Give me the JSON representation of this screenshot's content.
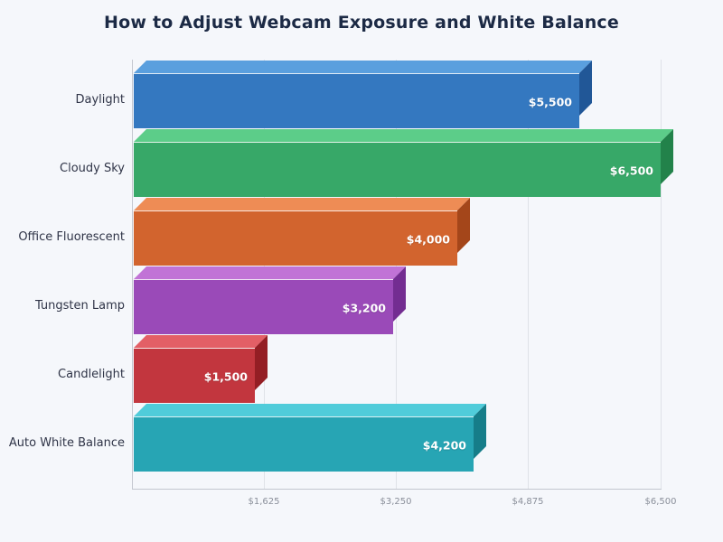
{
  "title": "How to Adjust Webcam Exposure and White Balance",
  "chart_data": {
    "type": "bar",
    "orientation": "horizontal",
    "style": "3d",
    "title": "How to Adjust Webcam Exposure and White Balance",
    "xlabel": "",
    "ylabel": "",
    "categories": [
      "Daylight",
      "Cloudy Sky",
      "Office Fluorescent",
      "Tungsten Lamp",
      "Candlelight",
      "Auto White Balance"
    ],
    "values": [
      5500,
      6500,
      4000,
      3200,
      1500,
      4200
    ],
    "value_labels": [
      "$5,500",
      "$6,500",
      "$4,000",
      "$3,200",
      "$1,500",
      "$4,200"
    ],
    "colors": [
      "#3478c0",
      "#37a868",
      "#d2642e",
      "#9a4ab8",
      "#c2363e",
      "#27a5b4"
    ],
    "xlim": [
      0,
      6500
    ],
    "x_ticks": [
      1625,
      3250,
      4875,
      6500
    ],
    "x_tick_labels": [
      "$1,625",
      "$3,250",
      "$4,875",
      "$6,500"
    ],
    "grid": true,
    "legend": false
  },
  "bars": [
    {
      "label": "Daylight",
      "value_label": "$5,500",
      "front": "#3478c0",
      "top": "#5a9fde",
      "side": "#215797"
    },
    {
      "label": "Cloudy Sky",
      "value_label": "$6,500",
      "front": "#37a868",
      "top": "#5ccd89",
      "side": "#22824a"
    },
    {
      "label": "Office Fluorescent",
      "value_label": "$4,000",
      "front": "#d2642e",
      "top": "#ee8c55",
      "side": "#a4461a"
    },
    {
      "label": "Tungsten Lamp",
      "value_label": "$3,200",
      "front": "#9a4ab8",
      "top": "#c173d6",
      "side": "#732d91"
    },
    {
      "label": "Candlelight",
      "value_label": "$1,500",
      "front": "#c2363e",
      "top": "#e35f66",
      "side": "#941e24"
    },
    {
      "label": "Auto White Balance",
      "value_label": "$4,200",
      "front": "#27a5b4",
      "top": "#50ccda",
      "side": "#167d89"
    }
  ],
  "x_axis": {
    "tick_labels": [
      "$1,625",
      "$3,250",
      "$4,875",
      "$6,500"
    ]
  }
}
